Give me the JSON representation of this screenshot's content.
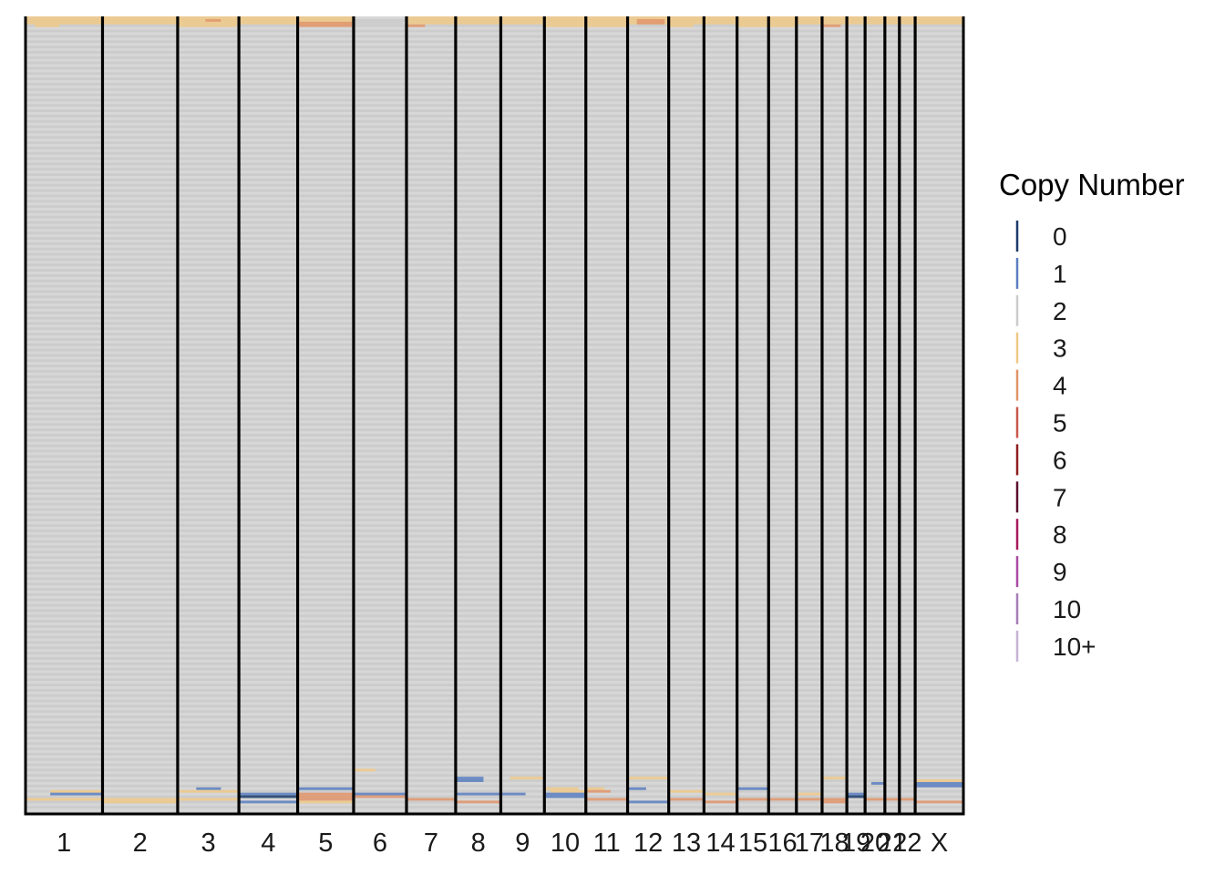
{
  "chart_data": {
    "type": "heatmap",
    "title": "",
    "xlabel": "",
    "ylabel": "",
    "chromosomes": [
      "1",
      "2",
      "3",
      "4",
      "5",
      "6",
      "7",
      "8",
      "9",
      "10",
      "11",
      "12",
      "13",
      "14",
      "15",
      "16",
      "17",
      "18",
      "19",
      "20",
      "21",
      "22",
      "X"
    ],
    "chromosome_lengths_mb": [
      249,
      243,
      198,
      190,
      181,
      171,
      159,
      146,
      141,
      134,
      135,
      133,
      114,
      107,
      102,
      90,
      83,
      80,
      59,
      64,
      47,
      51,
      156
    ],
    "n_cells": 300,
    "baseline_copy_number": "2",
    "legend": {
      "title": "Copy Number",
      "position": "right",
      "entries": [
        {
          "label": "0",
          "color": "#1b3a6b"
        },
        {
          "label": "1",
          "color": "#5b7fc0"
        },
        {
          "label": "2",
          "color": "#cccccc"
        },
        {
          "label": "3",
          "color": "#f0c987"
        },
        {
          "label": "4",
          "color": "#e0956a"
        },
        {
          "label": "5",
          "color": "#c9584a"
        },
        {
          "label": "6",
          "color": "#8f1d1d"
        },
        {
          "label": "7",
          "color": "#5a0f2e"
        },
        {
          "label": "8",
          "color": "#a8185b"
        },
        {
          "label": "9",
          "color": "#a94aa5"
        },
        {
          "label": "10",
          "color": "#a77cb8"
        },
        {
          "label": "10+",
          "color": "#c7b3d6"
        }
      ]
    },
    "segments": [
      {
        "cells": [
          0,
          3
        ],
        "chr": "1",
        "start_mb": 0,
        "end_mb": 249,
        "copy_number": "3"
      },
      {
        "cells": [
          0,
          3
        ],
        "chr": "2",
        "start_mb": 0,
        "end_mb": 243,
        "copy_number": "3"
      },
      {
        "cells": [
          0,
          3
        ],
        "chr": "3",
        "start_mb": 0,
        "end_mb": 198,
        "copy_number": "3"
      },
      {
        "cells": [
          0,
          3
        ],
        "chr": "4",
        "start_mb": 0,
        "end_mb": 190,
        "copy_number": "3"
      },
      {
        "cells": [
          0,
          3
        ],
        "chr": "5",
        "start_mb": 0,
        "end_mb": 181,
        "copy_number": "3"
      },
      {
        "cells": [
          0,
          3
        ],
        "chr": "7",
        "start_mb": 0,
        "end_mb": 159,
        "copy_number": "3"
      },
      {
        "cells": [
          0,
          3
        ],
        "chr": "8",
        "start_mb": 0,
        "end_mb": 146,
        "copy_number": "3"
      },
      {
        "cells": [
          0,
          3
        ],
        "chr": "9",
        "start_mb": 0,
        "end_mb": 141,
        "copy_number": "3"
      },
      {
        "cells": [
          0,
          3
        ],
        "chr": "10",
        "start_mb": 0,
        "end_mb": 134,
        "copy_number": "3"
      },
      {
        "cells": [
          0,
          3
        ],
        "chr": "11",
        "start_mb": 0,
        "end_mb": 135,
        "copy_number": "3"
      },
      {
        "cells": [
          0,
          3
        ],
        "chr": "12",
        "start_mb": 0,
        "end_mb": 133,
        "copy_number": "3"
      },
      {
        "cells": [
          0,
          3
        ],
        "chr": "13",
        "start_mb": 0,
        "end_mb": 114,
        "copy_number": "3"
      },
      {
        "cells": [
          0,
          3
        ],
        "chr": "14",
        "start_mb": 0,
        "end_mb": 107,
        "copy_number": "3"
      },
      {
        "cells": [
          0,
          3
        ],
        "chr": "15",
        "start_mb": 0,
        "end_mb": 102,
        "copy_number": "3"
      },
      {
        "cells": [
          0,
          3
        ],
        "chr": "16",
        "start_mb": 0,
        "end_mb": 90,
        "copy_number": "3"
      },
      {
        "cells": [
          0,
          3
        ],
        "chr": "17",
        "start_mb": 0,
        "end_mb": 83,
        "copy_number": "3"
      },
      {
        "cells": [
          0,
          3
        ],
        "chr": "18",
        "start_mb": 0,
        "end_mb": 80,
        "copy_number": "3"
      },
      {
        "cells": [
          0,
          3
        ],
        "chr": "19",
        "start_mb": 0,
        "end_mb": 59,
        "copy_number": "3"
      },
      {
        "cells": [
          0,
          3
        ],
        "chr": "20",
        "start_mb": 0,
        "end_mb": 64,
        "copy_number": "3"
      },
      {
        "cells": [
          0,
          3
        ],
        "chr": "21",
        "start_mb": 0,
        "end_mb": 47,
        "copy_number": "3"
      },
      {
        "cells": [
          0,
          3
        ],
        "chr": "22",
        "start_mb": 0,
        "end_mb": 51,
        "copy_number": "3"
      },
      {
        "cells": [
          0,
          3
        ],
        "chr": "X",
        "start_mb": 0,
        "end_mb": 156,
        "copy_number": "3"
      },
      {
        "cells": [
          1,
          2
        ],
        "chr": "3",
        "start_mb": 90,
        "end_mb": 140,
        "copy_number": "4"
      },
      {
        "cells": [
          2,
          4
        ],
        "chr": "5",
        "start_mb": 0,
        "end_mb": 175,
        "copy_number": "4"
      },
      {
        "cells": [
          2,
          4
        ],
        "chr": "6",
        "start_mb": 0,
        "end_mb": 160,
        "copy_number": "2"
      },
      {
        "cells": [
          3,
          4
        ],
        "chr": "7",
        "start_mb": 0,
        "end_mb": 60,
        "copy_number": "4"
      },
      {
        "cells": [
          1,
          3
        ],
        "chr": "12",
        "start_mb": 30,
        "end_mb": 120,
        "copy_number": "4"
      },
      {
        "cells": [
          3,
          4
        ],
        "chr": "18",
        "start_mb": 0,
        "end_mb": 60,
        "copy_number": "4"
      },
      {
        "cells": [
          3,
          4
        ],
        "chr": "1",
        "start_mb": 30,
        "end_mb": 110,
        "copy_number": "3"
      },
      {
        "cells": [
          3,
          4
        ],
        "chr": "3",
        "start_mb": 0,
        "end_mb": 190,
        "copy_number": "3"
      },
      {
        "cells": [
          3,
          4
        ],
        "chr": "10",
        "start_mb": 0,
        "end_mb": 134,
        "copy_number": "3"
      },
      {
        "cells": [
          3,
          4
        ],
        "chr": "11",
        "start_mb": 0,
        "end_mb": 135,
        "copy_number": "3"
      },
      {
        "cells": [
          3,
          4
        ],
        "chr": "13",
        "start_mb": 0,
        "end_mb": 80,
        "copy_number": "3"
      },
      {
        "cells": [
          3,
          4
        ],
        "chr": "15",
        "start_mb": 0,
        "end_mb": 102,
        "copy_number": "3"
      },
      {
        "cells": [
          3,
          4
        ],
        "chr": "16",
        "start_mb": 0,
        "end_mb": 90,
        "copy_number": "3"
      },
      {
        "cells": [
          283,
          284
        ],
        "chr": "6",
        "start_mb": 0,
        "end_mb": 70,
        "copy_number": "3"
      },
      {
        "cells": [
          286,
          288
        ],
        "chr": "8",
        "start_mb": 0,
        "end_mb": 90,
        "copy_number": "1"
      },
      {
        "cells": [
          286,
          287
        ],
        "chr": "9",
        "start_mb": 30,
        "end_mb": 141,
        "copy_number": "3"
      },
      {
        "cells": [
          286,
          287
        ],
        "chr": "12",
        "start_mb": 0,
        "end_mb": 133,
        "copy_number": "3"
      },
      {
        "cells": [
          286,
          287
        ],
        "chr": "18",
        "start_mb": 0,
        "end_mb": 80,
        "copy_number": "3"
      },
      {
        "cells": [
          287,
          288
        ],
        "chr": "X",
        "start_mb": 0,
        "end_mb": 156,
        "copy_number": "3"
      },
      {
        "cells": [
          288,
          290
        ],
        "chr": "X",
        "start_mb": 0,
        "end_mb": 156,
        "copy_number": "1"
      },
      {
        "cells": [
          288,
          289
        ],
        "chr": "20",
        "start_mb": 20,
        "end_mb": 64,
        "copy_number": "1"
      },
      {
        "cells": [
          290,
          291
        ],
        "chr": "10",
        "start_mb": 0,
        "end_mb": 110,
        "copy_number": "3"
      },
      {
        "cells": [
          290,
          291
        ],
        "chr": "11",
        "start_mb": 0,
        "end_mb": 60,
        "copy_number": "3"
      },
      {
        "cells": [
          290,
          291
        ],
        "chr": "3",
        "start_mb": 60,
        "end_mb": 140,
        "copy_number": "1"
      },
      {
        "cells": [
          290,
          291
        ],
        "chr": "5",
        "start_mb": 0,
        "end_mb": 181,
        "copy_number": "1"
      },
      {
        "cells": [
          290,
          291
        ],
        "chr": "12",
        "start_mb": 0,
        "end_mb": 60,
        "copy_number": "1"
      },
      {
        "cells": [
          290,
          291
        ],
        "chr": "15",
        "start_mb": 0,
        "end_mb": 102,
        "copy_number": "1"
      },
      {
        "cells": [
          291,
          292
        ],
        "chr": "1",
        "start_mb": 80,
        "end_mb": 249,
        "copy_number": "3"
      },
      {
        "cells": [
          291,
          292
        ],
        "chr": "3",
        "start_mb": 0,
        "end_mb": 198,
        "copy_number": "3"
      },
      {
        "cells": [
          291,
          292
        ],
        "chr": "10",
        "start_mb": 20,
        "end_mb": 134,
        "copy_number": "3"
      },
      {
        "cells": [
          291,
          292
        ],
        "chr": "11",
        "start_mb": 0,
        "end_mb": 80,
        "copy_number": "4"
      },
      {
        "cells": [
          291,
          292
        ],
        "chr": "13",
        "start_mb": 0,
        "end_mb": 114,
        "copy_number": "3"
      },
      {
        "cells": [
          292,
          293
        ],
        "chr": "1",
        "start_mb": 80,
        "end_mb": 249,
        "copy_number": "1"
      },
      {
        "cells": [
          292,
          293
        ],
        "chr": "4",
        "start_mb": 0,
        "end_mb": 190,
        "copy_number": "1"
      },
      {
        "cells": [
          292,
          293
        ],
        "chr": "5",
        "start_mb": 0,
        "end_mb": 181,
        "copy_number": "4"
      },
      {
        "cells": [
          292,
          293
        ],
        "chr": "6",
        "start_mb": 0,
        "end_mb": 171,
        "copy_number": "1"
      },
      {
        "cells": [
          292,
          293
        ],
        "chr": "8",
        "start_mb": 0,
        "end_mb": 146,
        "copy_number": "1"
      },
      {
        "cells": [
          292,
          293
        ],
        "chr": "9",
        "start_mb": 0,
        "end_mb": 80,
        "copy_number": "1"
      },
      {
        "cells": [
          292,
          293
        ],
        "chr": "10",
        "start_mb": 0,
        "end_mb": 134,
        "copy_number": "1"
      },
      {
        "cells": [
          292,
          293
        ],
        "chr": "14",
        "start_mb": 0,
        "end_mb": 107,
        "copy_number": "3"
      },
      {
        "cells": [
          292,
          293
        ],
        "chr": "17",
        "start_mb": 0,
        "end_mb": 83,
        "copy_number": "3"
      },
      {
        "cells": [
          292,
          293
        ],
        "chr": "19",
        "start_mb": 0,
        "end_mb": 59,
        "copy_number": "1"
      },
      {
        "cells": [
          293,
          294
        ],
        "chr": "4",
        "start_mb": 0,
        "end_mb": 190,
        "copy_number": "0"
      },
      {
        "cells": [
          293,
          294
        ],
        "chr": "5",
        "start_mb": 0,
        "end_mb": 181,
        "copy_number": "4"
      },
      {
        "cells": [
          293,
          294
        ],
        "chr": "6",
        "start_mb": 0,
        "end_mb": 171,
        "copy_number": "4"
      },
      {
        "cells": [
          293,
          294
        ],
        "chr": "19",
        "start_mb": 0,
        "end_mb": 59,
        "copy_number": "0"
      },
      {
        "cells": [
          293,
          294
        ],
        "chr": "10",
        "start_mb": 0,
        "end_mb": 134,
        "copy_number": "1"
      },
      {
        "cells": [
          294,
          295
        ],
        "chr": "1",
        "start_mb": 0,
        "end_mb": 249,
        "copy_number": "3"
      },
      {
        "cells": [
          294,
          295
        ],
        "chr": "2",
        "start_mb": 0,
        "end_mb": 243,
        "copy_number": "3"
      },
      {
        "cells": [
          294,
          295
        ],
        "chr": "3",
        "start_mb": 0,
        "end_mb": 198,
        "copy_number": "3"
      },
      {
        "cells": [
          294,
          295
        ],
        "chr": "5",
        "start_mb": 0,
        "end_mb": 181,
        "copy_number": "4"
      },
      {
        "cells": [
          294,
          295
        ],
        "chr": "7",
        "start_mb": 0,
        "end_mb": 159,
        "copy_number": "4"
      },
      {
        "cells": [
          294,
          295
        ],
        "chr": "11",
        "start_mb": 0,
        "end_mb": 135,
        "copy_number": "4"
      },
      {
        "cells": [
          294,
          295
        ],
        "chr": "13",
        "start_mb": 0,
        "end_mb": 114,
        "copy_number": "4"
      },
      {
        "cells": [
          294,
          295
        ],
        "chr": "15",
        "start_mb": 0,
        "end_mb": 102,
        "copy_number": "4"
      },
      {
        "cells": [
          294,
          295
        ],
        "chr": "16",
        "start_mb": 0,
        "end_mb": 90,
        "copy_number": "4"
      },
      {
        "cells": [
          294,
          295
        ],
        "chr": "17",
        "start_mb": 0,
        "end_mb": 83,
        "copy_number": "4"
      },
      {
        "cells": [
          294,
          295
        ],
        "chr": "18",
        "start_mb": 0,
        "end_mb": 80,
        "copy_number": "4"
      },
      {
        "cells": [
          294,
          295
        ],
        "chr": "20",
        "start_mb": 0,
        "end_mb": 64,
        "copy_number": "4"
      },
      {
        "cells": [
          294,
          295
        ],
        "chr": "21",
        "start_mb": 0,
        "end_mb": 47,
        "copy_number": "4"
      },
      {
        "cells": [
          294,
          295
        ],
        "chr": "22",
        "start_mb": 0,
        "end_mb": 51,
        "copy_number": "4"
      },
      {
        "cells": [
          295,
          296
        ],
        "chr": "2",
        "start_mb": 0,
        "end_mb": 243,
        "copy_number": "3"
      },
      {
        "cells": [
          295,
          296
        ],
        "chr": "4",
        "start_mb": 0,
        "end_mb": 190,
        "copy_number": "1"
      },
      {
        "cells": [
          295,
          296
        ],
        "chr": "5",
        "start_mb": 0,
        "end_mb": 181,
        "copy_number": "3"
      },
      {
        "cells": [
          295,
          296
        ],
        "chr": "8",
        "start_mb": 0,
        "end_mb": 146,
        "copy_number": "4"
      },
      {
        "cells": [
          295,
          296
        ],
        "chr": "12",
        "start_mb": 0,
        "end_mb": 133,
        "copy_number": "1"
      },
      {
        "cells": [
          295,
          296
        ],
        "chr": "14",
        "start_mb": 0,
        "end_mb": 107,
        "copy_number": "4"
      },
      {
        "cells": [
          295,
          296
        ],
        "chr": "18",
        "start_mb": 0,
        "end_mb": 80,
        "copy_number": "4"
      },
      {
        "cells": [
          295,
          296
        ],
        "chr": "X",
        "start_mb": 0,
        "end_mb": 156,
        "copy_number": "4"
      }
    ]
  }
}
